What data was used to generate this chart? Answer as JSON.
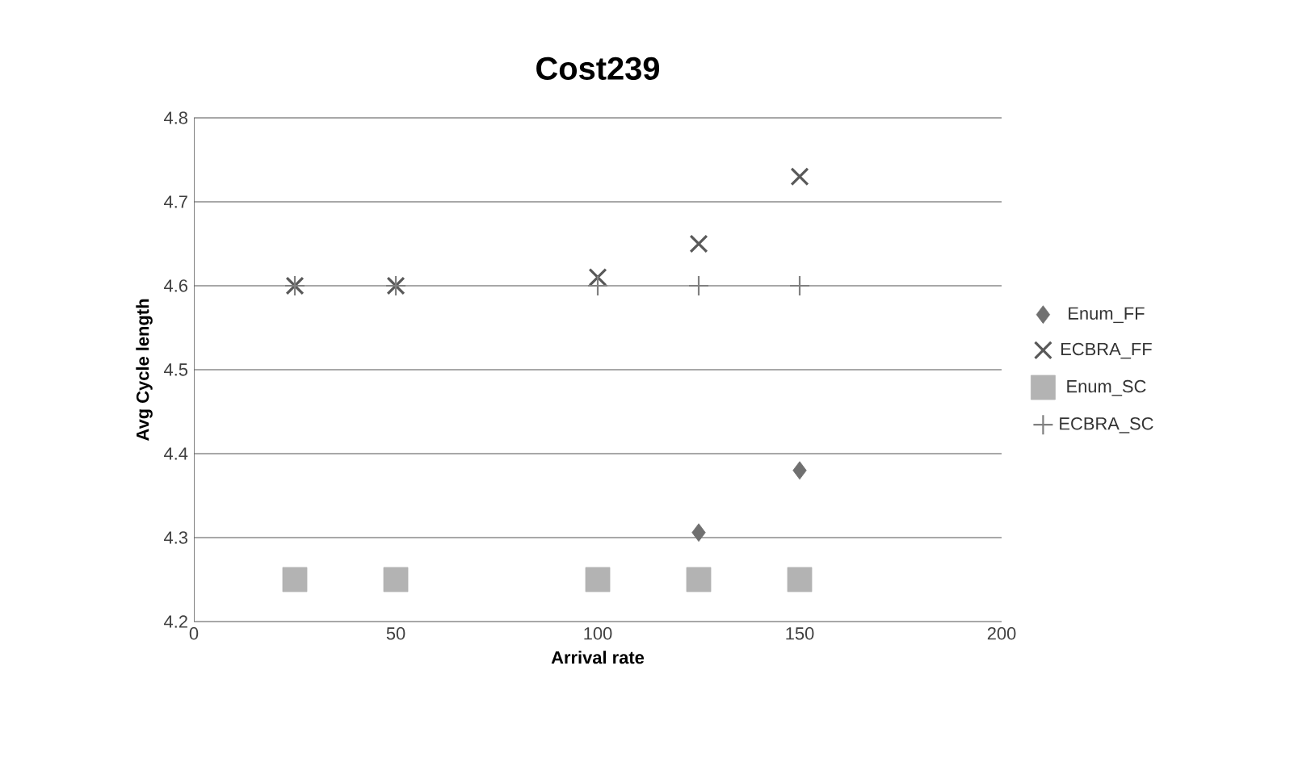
{
  "chart_data": {
    "type": "scatter",
    "title": "Cost239",
    "xlabel": "Arrival rate",
    "ylabel": "Avg Cycle length",
    "x": [
      25,
      50,
      100,
      125,
      150
    ],
    "series": [
      {
        "name": "Enum_FF",
        "color": "#707070",
        "marker": "diamond",
        "values": [
          null,
          null,
          null,
          4.306,
          4.38
        ]
      },
      {
        "name": "ECBRA_FF",
        "color": "#595959",
        "marker": "cross",
        "values": [
          4.6,
          4.6,
          4.61,
          4.65,
          4.73
        ]
      },
      {
        "name": "Enum_SC",
        "color": "#b3b3b3",
        "marker": "square",
        "values": [
          4.25,
          4.25,
          4.25,
          4.25,
          4.25
        ]
      },
      {
        "name": "ECBRA_SC",
        "color": "#808080",
        "marker": "plus",
        "values": [
          4.6,
          4.6,
          4.6,
          4.6,
          4.6
        ]
      }
    ],
    "xlim": [
      0,
      200
    ],
    "xticks": [
      0,
      50,
      100,
      150,
      200
    ],
    "ylim": [
      4.2,
      4.8
    ],
    "yticks": [
      4.2,
      4.3,
      4.4,
      4.5,
      4.6,
      4.7,
      4.8
    ],
    "grid": "y",
    "legend": "right"
  }
}
